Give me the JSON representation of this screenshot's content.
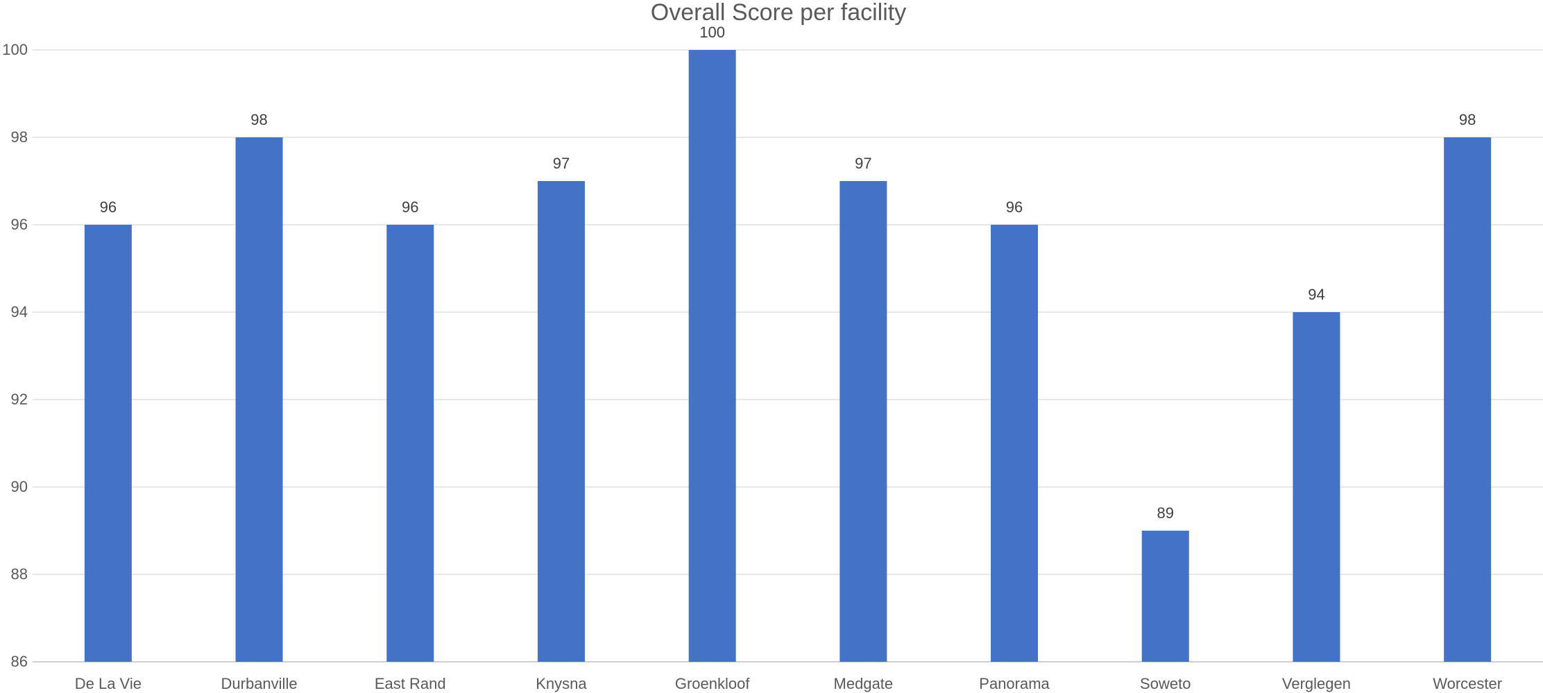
{
  "chart_data": {
    "type": "bar",
    "title": "Overall Score per facility",
    "xlabel": "",
    "ylabel": "",
    "categories": [
      "De La Vie",
      "Durbanville",
      "East Rand",
      "Knysna",
      "Groenkloof",
      "Medgate",
      "Panorama",
      "Soweto",
      "Verglegen",
      "Worcester"
    ],
    "values": [
      96,
      98,
      96,
      97,
      100,
      97,
      96,
      89,
      94,
      98
    ],
    "data_labels": [
      "96",
      "98",
      "96",
      "97",
      "100",
      "97",
      "96",
      "89",
      "94",
      "98"
    ],
    "ylim": [
      86,
      100
    ],
    "y_ticks": [
      86,
      88,
      90,
      92,
      94,
      96,
      98,
      100
    ],
    "y_tick_labels": [
      "86",
      "88",
      "90",
      "92",
      "94",
      "96",
      "98",
      "100"
    ],
    "grid": true,
    "legend": "none",
    "colors": {
      "bar": "#4472C4",
      "grid": "#D9D9D9",
      "axis": "#BFBFBF",
      "text": "#595959",
      "data_label": "#404040"
    }
  }
}
